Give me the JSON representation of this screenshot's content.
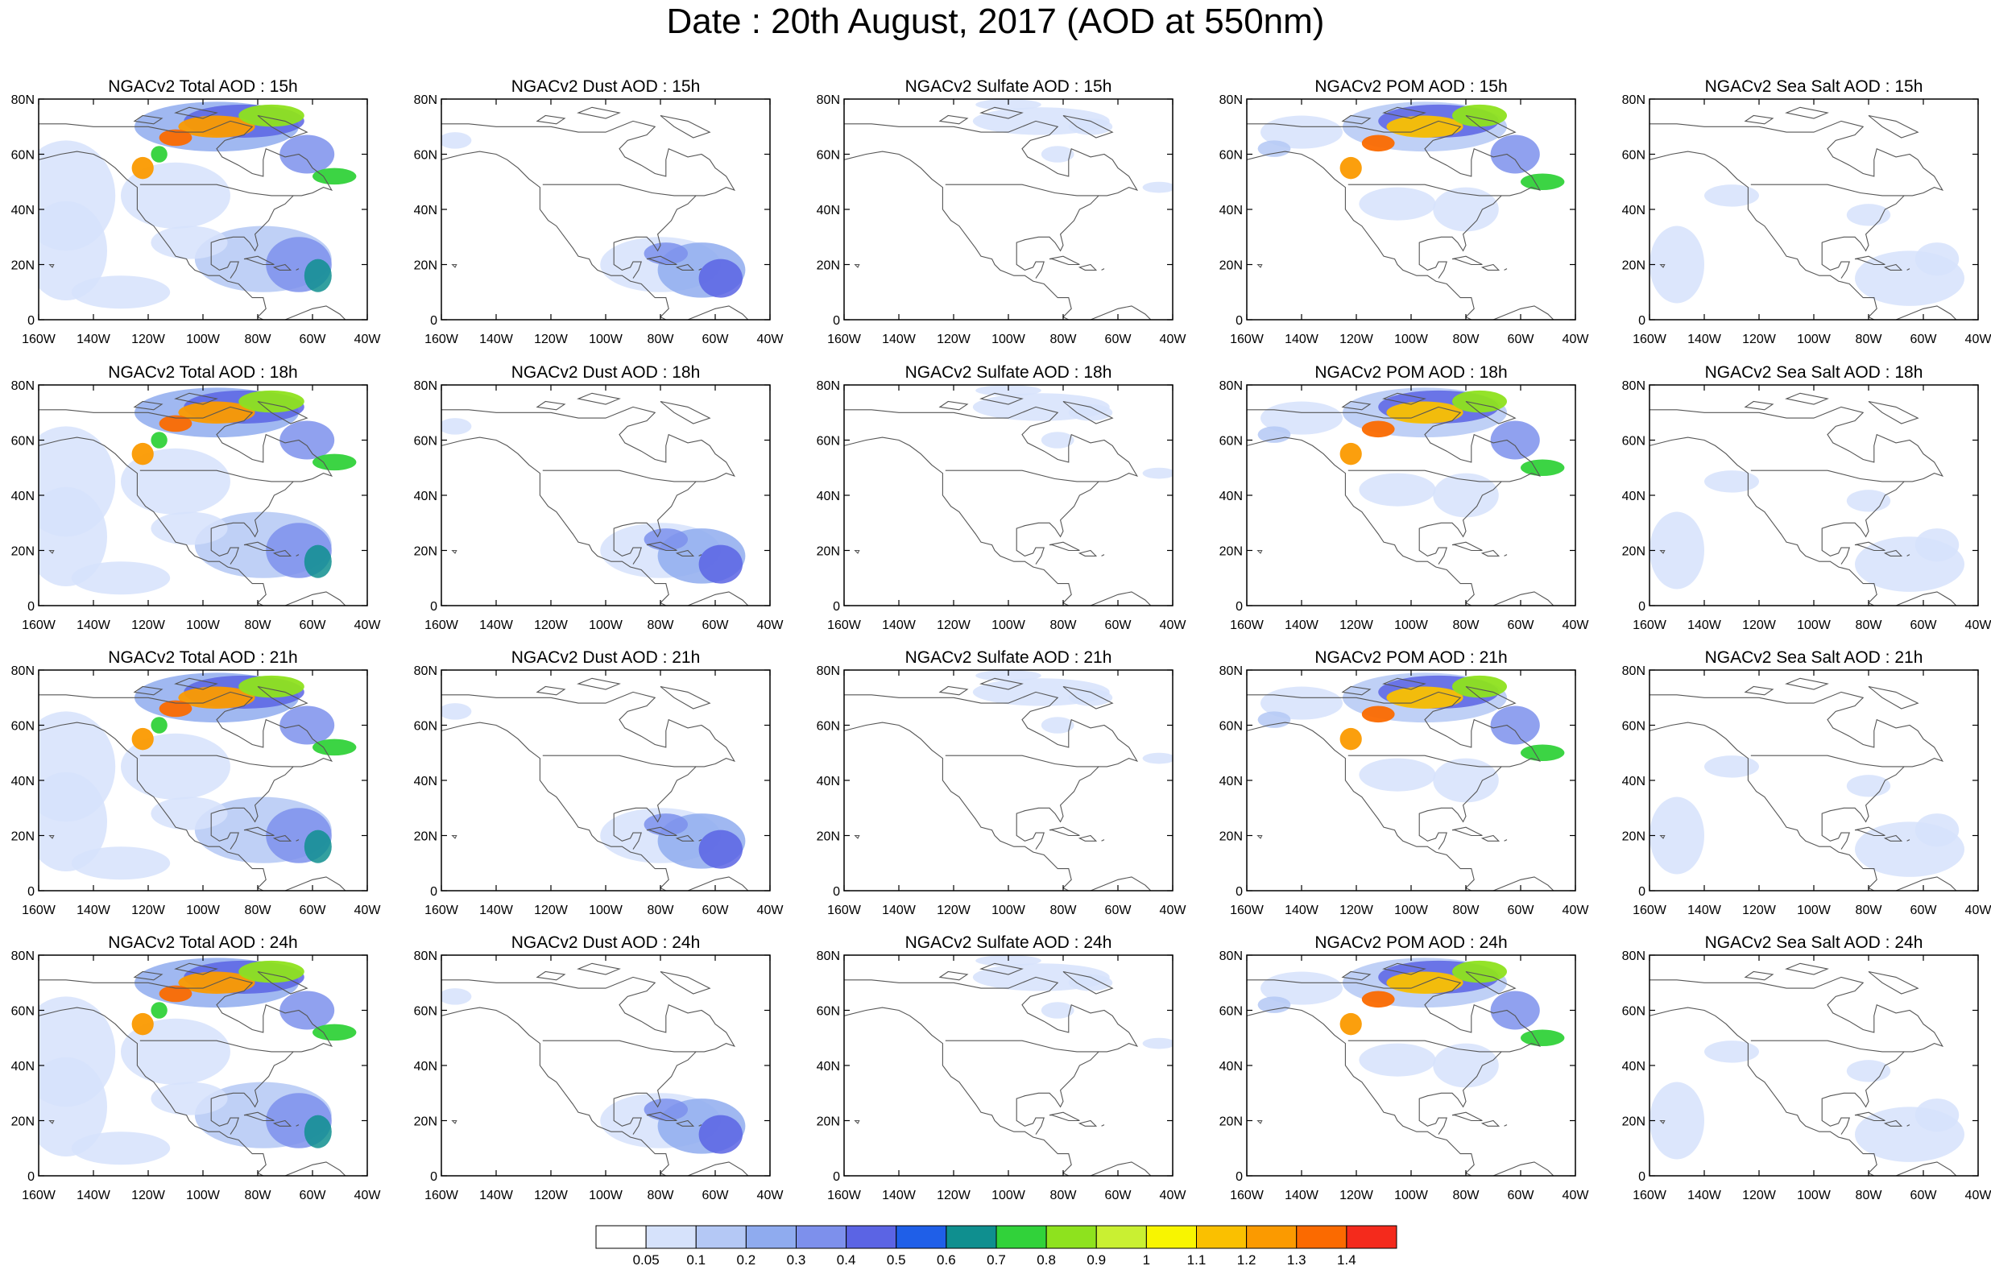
{
  "figure": {
    "title": "Date : 20th August, 2017 (AOD at 550nm)"
  },
  "axes": {
    "lat_ticks": [
      "80N",
      "60N",
      "40N",
      "20N",
      "0"
    ],
    "lon_ticks": [
      "160W",
      "140W",
      "120W",
      "100W",
      "80W",
      "60W",
      "40W"
    ],
    "lat_range": [
      0,
      80
    ],
    "lon_range": [
      -160,
      -40
    ]
  },
  "rows": [
    {
      "hour": "15h",
      "titles": [
        "NGACv2 Total AOD : 15h",
        "NGACv2 Dust AOD : 15h",
        "NGACv2 Sulfate AOD : 15h",
        "NGACv2 POM AOD : 15h",
        "NGACv2 Sea Salt AOD : 15h"
      ]
    },
    {
      "hour": "18h",
      "titles": [
        "NGACv2 Total AOD : 18h",
        "NGACv2 Dust AOD : 18h",
        "NGACv2 Sulfate AOD : 18h",
        "NGACv2 POM AOD : 18h",
        "NGACv2 Sea Salt AOD : 18h"
      ]
    },
    {
      "hour": "21h",
      "titles": [
        "NGACv2 Total AOD : 21h",
        "NGACv2 Dust AOD : 21h",
        "NGACv2 Sulfate AOD : 21h",
        "NGACv2 POM AOD : 21h",
        "NGACv2 Sea Salt AOD : 21h"
      ]
    },
    {
      "hour": "24h",
      "titles": [
        "NGACv2 Total AOD : 24h",
        "NGACv2 Dust AOD : 24h",
        "NGACv2 Sulfate AOD : 24h",
        "NGACv2 POM AOD : 24h",
        "NGACv2 Sea Salt  AOD : 24h"
      ]
    }
  ],
  "colorbar": {
    "labels": [
      "0.05",
      "0.1",
      "0.2",
      "0.3",
      "0.4",
      "0.5",
      "0.6",
      "0.7",
      "0.8",
      "0.9",
      "1",
      "1.1",
      "1.2",
      "1.3",
      "1.4"
    ],
    "colors": [
      "#ffffff",
      "#d6e2fb",
      "#b4c8f5",
      "#8fabef",
      "#7d90ec",
      "#5b64e4",
      "#1f5fe8",
      "#0f8f8f",
      "#31d23a",
      "#8ee21e",
      "#c9f032",
      "#f8f500",
      "#fac000",
      "#fb9a00",
      "#fb6a00",
      "#f42a1c"
    ]
  },
  "legend_colors": {
    "map_border": "#555555",
    "axis": "#000000"
  }
}
